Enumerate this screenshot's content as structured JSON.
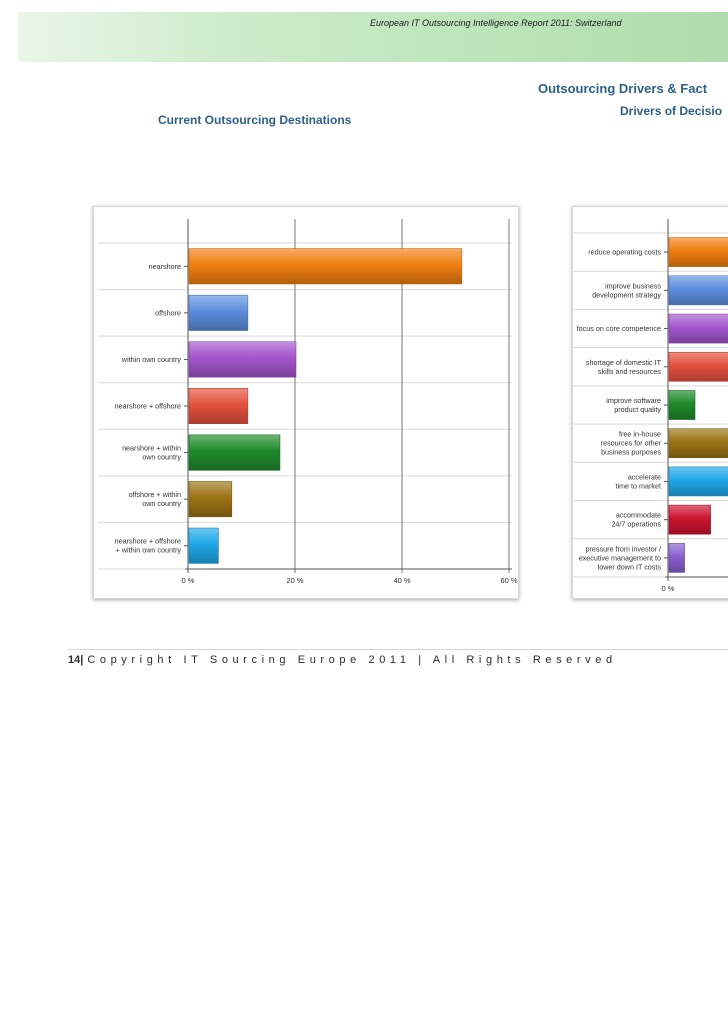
{
  "report_title": "European IT Outsourcing Intelligence Report 2011: Switzerland",
  "section_title": "Outsourcing Drivers & Fact",
  "right_subtitle": "Drivers of Decisio",
  "left_subtitle": "Current Outsourcing Destinations",
  "footer": {
    "page_number": "14",
    "separator": "|",
    "text": "Copyright IT Sourcing Europe 2011 | All Rights Reserved"
  },
  "colors": {
    "header_green": "#bfe6bd",
    "title_blue": "#2f5f86"
  },
  "chart_data": [
    {
      "type": "bar",
      "orientation": "horizontal",
      "title": "Current Outsourcing Destinations",
      "categories": [
        "nearshore",
        "offshore",
        "within own country",
        "nearshore + offshore",
        "nearshore + within own country",
        "offshore + within own country",
        "nearshore + offshore + within own country"
      ],
      "label_lines": [
        [
          "nearshore"
        ],
        [
          "offshore"
        ],
        [
          "within own country"
        ],
        [
          "nearshore + offshore"
        ],
        [
          "nearshore + within",
          "own country"
        ],
        [
          "offshore + within",
          "own country"
        ],
        [
          "nearshore + offshore",
          "+ within own country"
        ]
      ],
      "values": [
        51,
        11,
        20,
        11,
        17,
        8,
        5.5
      ],
      "colors": [
        "#f07f10",
        "#5b8ede",
        "#a455cc",
        "#e5513f",
        "#1e8a2b",
        "#9c7314",
        "#1fa8e8"
      ],
      "xlim": [
        0,
        60
      ],
      "x_ticks": [
        0,
        20,
        40,
        60
      ],
      "x_tick_labels": [
        "0 %",
        "20 %",
        "40 %",
        "60 %"
      ],
      "grid": true
    },
    {
      "type": "bar",
      "orientation": "horizontal",
      "title": "Drivers of Decisio",
      "categories": [
        "reduce operating costs",
        "improve business development strategy",
        "focus on core competence",
        "shortage of domestic IT skills and resources",
        "improve software product quality",
        "free in-house resources for other business purposes",
        "accelerate time to market",
        "accommodate 24/7 operations",
        "pressure from investor / executive management to lower down IT costs"
      ],
      "label_lines": [
        [
          "reduce operating costs"
        ],
        [
          "improve business",
          "development strategy"
        ],
        [
          "focus on core competence"
        ],
        [
          "shortage of domestic IT",
          "skills and resources"
        ],
        [
          "improve software",
          "product quality"
        ],
        [
          "free in-house",
          "resources for other",
          "business purposes"
        ],
        [
          "accelerate",
          "time to market"
        ],
        [
          "accommodate",
          "24/7 operations"
        ],
        [
          "pressure from investor /",
          "executive management to",
          "lower down IT costs"
        ]
      ],
      "values": [
        null,
        null,
        null,
        null,
        5,
        null,
        null,
        8,
        3
      ],
      "colors": [
        "#f07f10",
        "#5b8ede",
        "#a455cc",
        "#e5513f",
        "#1e8a2b",
        "#9c7314",
        "#1fa8e8",
        "#cc1430",
        "#8a5fd0"
      ],
      "x_ticks": [
        0
      ],
      "x_tick_labels": [
        "0 %"
      ],
      "grid": true
    }
  ]
}
